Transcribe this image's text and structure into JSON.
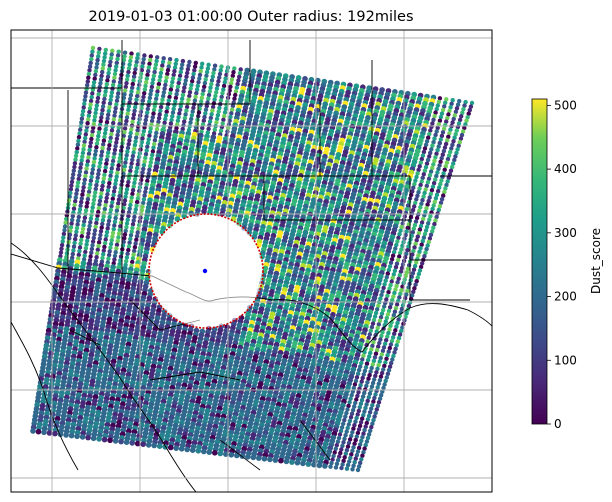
{
  "chart_data": {
    "type": "heatmap",
    "title": "2019-01-03  01:00:00 Outer radius: 192miles",
    "subtype": "satellite swath scatter map with outer-radius circle",
    "colormap": "viridis",
    "colorbar": {
      "label": "Dust_score",
      "range": [
        0,
        510
      ],
      "ticks": [
        0,
        100,
        200,
        300,
        400,
        500
      ],
      "tick_labels": [
        "0",
        "100",
        "200",
        "300",
        "400",
        "500"
      ],
      "placement": "right"
    },
    "grid": true,
    "outer_radius_miles": 192,
    "circle_color": "#cc0000",
    "center_marker_color": "#0000ff",
    "frame_color": "#000000",
    "gridline_color": "#b0b0b0"
  }
}
